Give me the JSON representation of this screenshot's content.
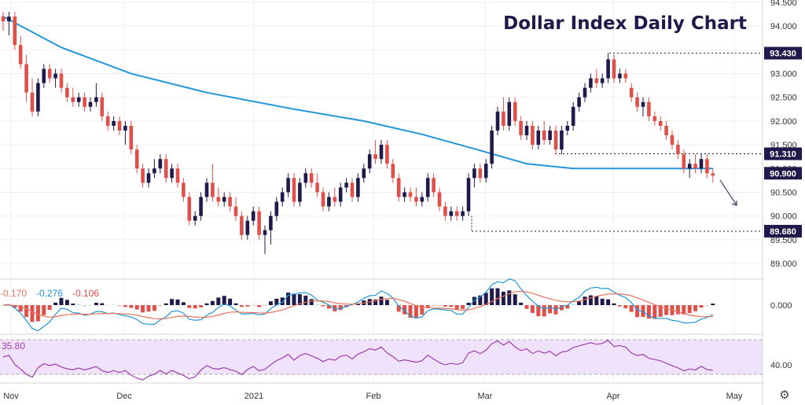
{
  "title": "Dollar Index Daily Chart",
  "colors": {
    "up": "#1f1a4a",
    "down": "#e0504a",
    "ma": "#2196d8",
    "badge": "#1f1a4a",
    "macd_line": "#2196d8",
    "signal_line": "#e8725d",
    "rsi_line": "#9b3fb0",
    "rsi_band": "#f1e2fb"
  },
  "price_axis": {
    "ticks": [
      "94.500",
      "94.000",
      "93.500",
      "93.000",
      "92.500",
      "92.000",
      "91.500",
      "91.000",
      "90.500",
      "90.000",
      "89.500",
      "89.000"
    ]
  },
  "time_axis": {
    "labels": [
      "Nov",
      "Dec",
      "2021",
      "Feb",
      "Mar",
      "Apr",
      "May"
    ]
  },
  "levels": [
    {
      "value": 93.43,
      "label": "93.430"
    },
    {
      "value": 91.31,
      "label": "91.310"
    },
    {
      "value": 90.9,
      "label": "90.900"
    },
    {
      "value": 89.68,
      "label": "89.680"
    }
  ],
  "macd": {
    "values": [
      "-0.170",
      "-0.276",
      "-0.106"
    ],
    "axis_label": "0.000"
  },
  "rsi": {
    "value": "35.80",
    "axis_label": "40.00"
  },
  "settings_icon": "gear-icon",
  "chart_data": {
    "type": "candlestick",
    "title": "Dollar Index Daily Chart",
    "ylim": [
      88.8,
      94.6
    ],
    "candles": [
      [
        94.2,
        94.3,
        93.9,
        94.1
      ],
      [
        94.1,
        94.3,
        93.8,
        94.2
      ],
      [
        94.2,
        94.3,
        93.5,
        93.6
      ],
      [
        93.6,
        93.8,
        93.1,
        93.2
      ],
      [
        93.2,
        93.4,
        92.4,
        92.6
      ],
      [
        92.6,
        92.9,
        92.1,
        92.2
      ],
      [
        92.2,
        92.9,
        92.1,
        92.8
      ],
      [
        92.8,
        93.2,
        92.7,
        93.1
      ],
      [
        93.1,
        93.2,
        92.8,
        92.9
      ],
      [
        92.9,
        93.1,
        92.7,
        93.0
      ],
      [
        93.0,
        93.1,
        92.6,
        92.7
      ],
      [
        92.7,
        92.8,
        92.4,
        92.5
      ],
      [
        92.5,
        92.7,
        92.3,
        92.4
      ],
      [
        92.4,
        92.6,
        92.3,
        92.5
      ],
      [
        92.5,
        92.6,
        92.2,
        92.3
      ],
      [
        92.3,
        92.5,
        92.2,
        92.4
      ],
      [
        92.4,
        92.8,
        92.3,
        92.5
      ],
      [
        92.5,
        92.6,
        92.0,
        92.1
      ],
      [
        92.1,
        92.2,
        91.8,
        91.9
      ],
      [
        91.9,
        92.1,
        91.8,
        92.0
      ],
      [
        92.0,
        92.1,
        91.7,
        91.8
      ],
      [
        91.8,
        92.0,
        91.5,
        91.9
      ],
      [
        91.9,
        92.0,
        91.3,
        91.4
      ],
      [
        91.4,
        91.5,
        90.9,
        91.0
      ],
      [
        91.0,
        91.1,
        90.6,
        90.7
      ],
      [
        90.7,
        91.0,
        90.6,
        90.9
      ],
      [
        90.9,
        91.2,
        90.8,
        91.0
      ],
      [
        91.0,
        91.3,
        90.9,
        91.2
      ],
      [
        91.2,
        91.3,
        90.7,
        90.8
      ],
      [
        90.8,
        91.1,
        90.7,
        91.0
      ],
      [
        91.0,
        91.1,
        90.6,
        90.7
      ],
      [
        90.7,
        90.8,
        90.3,
        90.4
      ],
      [
        90.4,
        90.5,
        89.8,
        89.9
      ],
      [
        89.9,
        90.1,
        89.8,
        90.0
      ],
      [
        90.0,
        90.5,
        89.9,
        90.4
      ],
      [
        90.4,
        90.8,
        90.3,
        90.7
      ],
      [
        90.7,
        91.1,
        90.3,
        90.4
      ],
      [
        90.4,
        90.6,
        90.2,
        90.3
      ],
      [
        90.3,
        90.5,
        90.2,
        90.4
      ],
      [
        90.4,
        90.5,
        90.1,
        90.2
      ],
      [
        90.2,
        90.4,
        89.9,
        90.0
      ],
      [
        90.0,
        90.1,
        89.5,
        89.6
      ],
      [
        89.6,
        90.0,
        89.5,
        89.9
      ],
      [
        89.9,
        90.2,
        89.8,
        90.1
      ],
      [
        90.1,
        90.2,
        89.5,
        89.6
      ],
      [
        89.6,
        89.8,
        89.2,
        89.7
      ],
      [
        89.7,
        90.1,
        89.4,
        90.0
      ],
      [
        90.0,
        90.4,
        89.9,
        90.3
      ],
      [
        90.3,
        90.6,
        90.2,
        90.5
      ],
      [
        90.5,
        90.9,
        90.4,
        90.8
      ],
      [
        90.8,
        90.9,
        90.2,
        90.3
      ],
      [
        90.3,
        90.8,
        90.2,
        90.7
      ],
      [
        90.7,
        91.0,
        90.6,
        90.9
      ],
      [
        90.9,
        91.0,
        90.6,
        90.7
      ],
      [
        90.7,
        90.9,
        90.4,
        90.5
      ],
      [
        90.5,
        90.6,
        90.1,
        90.2
      ],
      [
        90.2,
        90.5,
        90.1,
        90.4
      ],
      [
        90.4,
        90.6,
        90.2,
        90.3
      ],
      [
        90.3,
        90.7,
        90.2,
        90.6
      ],
      [
        90.6,
        90.8,
        90.5,
        90.7
      ],
      [
        90.7,
        90.8,
        90.3,
        90.4
      ],
      [
        90.4,
        90.9,
        90.3,
        90.8
      ],
      [
        90.8,
        91.1,
        90.7,
        91.0
      ],
      [
        91.0,
        91.4,
        90.9,
        91.3
      ],
      [
        91.3,
        91.6,
        91.1,
        91.2
      ],
      [
        91.2,
        91.6,
        91.1,
        91.5
      ],
      [
        91.5,
        91.6,
        91.0,
        91.1
      ],
      [
        91.1,
        91.2,
        90.7,
        90.8
      ],
      [
        90.8,
        90.9,
        90.3,
        90.4
      ],
      [
        90.4,
        90.6,
        90.3,
        90.5
      ],
      [
        90.5,
        90.6,
        90.3,
        90.4
      ],
      [
        90.4,
        90.6,
        90.2,
        90.3
      ],
      [
        90.3,
        90.5,
        90.2,
        90.4
      ],
      [
        90.4,
        90.9,
        90.3,
        90.8
      ],
      [
        90.8,
        90.9,
        90.4,
        90.5
      ],
      [
        90.5,
        90.6,
        90.1,
        90.2
      ],
      [
        90.2,
        90.3,
        89.9,
        90.0
      ],
      [
        90.0,
        90.2,
        89.9,
        90.1
      ],
      [
        90.1,
        90.2,
        89.9,
        90.0
      ],
      [
        90.0,
        90.2,
        89.9,
        90.1
      ],
      [
        90.1,
        90.9,
        90.0,
        90.8
      ],
      [
        90.8,
        91.1,
        90.6,
        91.0
      ],
      [
        91.0,
        91.1,
        90.7,
        90.8
      ],
      [
        90.8,
        91.2,
        90.7,
        91.1
      ],
      [
        91.1,
        91.9,
        91.0,
        91.8
      ],
      [
        91.8,
        92.3,
        91.7,
        92.2
      ],
      [
        92.2,
        92.5,
        91.8,
        91.9
      ],
      [
        91.9,
        92.5,
        91.8,
        92.4
      ],
      [
        92.4,
        92.5,
        91.9,
        92.0
      ],
      [
        92.0,
        92.1,
        91.6,
        91.7
      ],
      [
        91.7,
        92.0,
        91.6,
        91.9
      ],
      [
        91.9,
        92.0,
        91.4,
        91.5
      ],
      [
        91.5,
        91.9,
        91.4,
        91.8
      ],
      [
        91.8,
        92.0,
        91.5,
        91.6
      ],
      [
        91.6,
        91.9,
        91.5,
        91.8
      ],
      [
        91.8,
        91.9,
        91.3,
        91.4
      ],
      [
        91.4,
        91.9,
        91.3,
        91.8
      ],
      [
        91.8,
        92.0,
        91.7,
        91.9
      ],
      [
        91.9,
        92.4,
        91.8,
        92.3
      ],
      [
        92.3,
        92.6,
        92.2,
        92.5
      ],
      [
        92.5,
        92.8,
        92.4,
        92.7
      ],
      [
        92.7,
        93.0,
        92.6,
        92.9
      ],
      [
        92.9,
        93.1,
        92.7,
        92.8
      ],
      [
        92.8,
        93.0,
        92.7,
        92.9
      ],
      [
        92.9,
        93.43,
        92.8,
        93.3
      ],
      [
        93.3,
        93.4,
        92.8,
        92.9
      ],
      [
        92.9,
        93.1,
        92.8,
        93.0
      ],
      [
        93.0,
        93.1,
        92.8,
        92.9
      ],
      [
        92.7,
        92.8,
        92.4,
        92.5
      ],
      [
        92.5,
        92.6,
        92.2,
        92.3
      ],
      [
        92.3,
        92.5,
        92.1,
        92.4
      ],
      [
        92.4,
        92.5,
        92.0,
        92.1
      ],
      [
        92.1,
        92.2,
        91.9,
        92.0
      ],
      [
        92.0,
        92.1,
        91.8,
        91.9
      ],
      [
        91.9,
        92.0,
        91.6,
        91.7
      ],
      [
        91.7,
        91.8,
        91.4,
        91.5
      ],
      [
        91.5,
        91.6,
        91.2,
        91.3
      ],
      [
        91.3,
        91.4,
        90.9,
        91.0
      ],
      [
        91.0,
        91.2,
        90.8,
        91.1
      ],
      [
        91.1,
        91.3,
        90.9,
        91.0
      ],
      [
        91.0,
        91.3,
        90.9,
        91.2
      ],
      [
        91.2,
        91.3,
        90.8,
        90.9
      ],
      [
        90.9,
        91.0,
        90.7,
        90.85
      ]
    ],
    "moving_average": [
      {
        "i": 0,
        "v": 94.2
      },
      {
        "i": 10,
        "v": 93.55
      },
      {
        "i": 22,
        "v": 93.0
      },
      {
        "i": 35,
        "v": 92.6
      },
      {
        "i": 50,
        "v": 92.25
      },
      {
        "i": 62,
        "v": 92.0
      },
      {
        "i": 72,
        "v": 91.72
      },
      {
        "i": 82,
        "v": 91.38
      },
      {
        "i": 90,
        "v": 91.1
      },
      {
        "i": 98,
        "v": 91.0
      },
      {
        "i": 110,
        "v": 91.0
      },
      {
        "i": 122,
        "v": 91.0
      }
    ],
    "macd_panel": {
      "values": [
        -0.17,
        -0.276,
        -0.106
      ]
    },
    "rsi_panel": {
      "value": 35.8,
      "reference": 40.0
    }
  }
}
